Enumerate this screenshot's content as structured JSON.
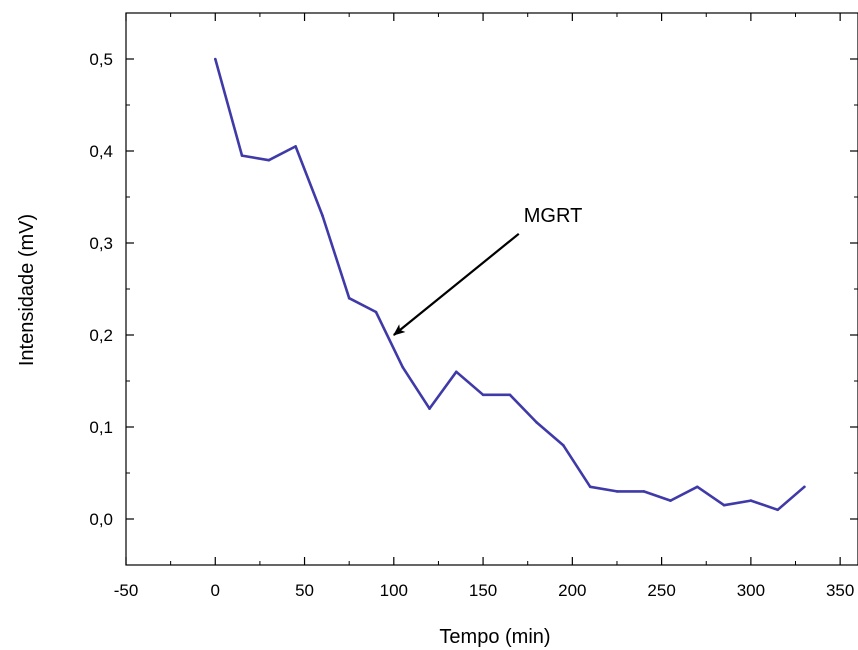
{
  "chart_data": {
    "type": "line",
    "title": "",
    "xlabel": "Tempo (min)",
    "ylabel": "Intensidade (mV)",
    "xlim": [
      -50,
      360
    ],
    "ylim": [
      -0.05,
      0.55
    ],
    "x_ticks": [
      -50,
      0,
      50,
      100,
      150,
      200,
      250,
      300,
      350
    ],
    "x_tick_labels": [
      "-50",
      "0",
      "50",
      "100",
      "150",
      "200",
      "250",
      "300",
      "350"
    ],
    "y_ticks": [
      0.0,
      0.1,
      0.2,
      0.3,
      0.4,
      0.5
    ],
    "y_tick_labels": [
      "0,0",
      "0,1",
      "0,2",
      "0,3",
      "0,4",
      "0,5"
    ],
    "grid": false,
    "series": [
      {
        "color": "#3f3aa8",
        "x": [
          0,
          15,
          30,
          45,
          60,
          75,
          90,
          105,
          120,
          135,
          150,
          165,
          180,
          195,
          210,
          225,
          240,
          255,
          270,
          285,
          300,
          315,
          330
        ],
        "y": [
          0.5,
          0.395,
          0.39,
          0.405,
          0.33,
          0.24,
          0.225,
          0.165,
          0.12,
          0.16,
          0.135,
          0.135,
          0.105,
          0.08,
          0.035,
          0.03,
          0.03,
          0.02,
          0.035,
          0.015,
          0.02,
          0.01,
          0.035
        ]
      }
    ],
    "annotations": [
      {
        "text": "MGRT",
        "arrow_from": [
          170,
          0.31
        ],
        "arrow_to": [
          100,
          0.2
        ]
      }
    ]
  }
}
